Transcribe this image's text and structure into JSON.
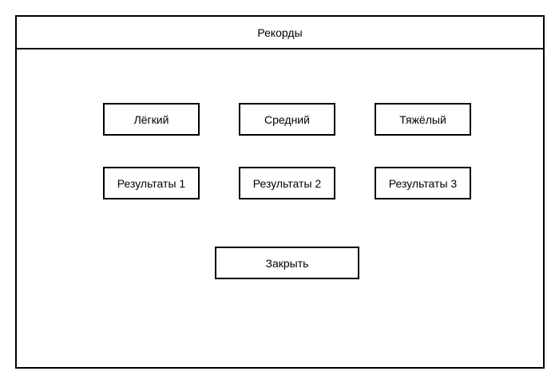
{
  "window": {
    "title": "Рекорды"
  },
  "difficulty_buttons": [
    {
      "label": "Лёгкий"
    },
    {
      "label": "Средний"
    },
    {
      "label": "Тяжёлый"
    }
  ],
  "results_buttons": [
    {
      "label": "Результаты 1"
    },
    {
      "label": "Результаты 2"
    },
    {
      "label": "Результаты 3"
    }
  ],
  "close_button": {
    "label": "Закрыть"
  }
}
